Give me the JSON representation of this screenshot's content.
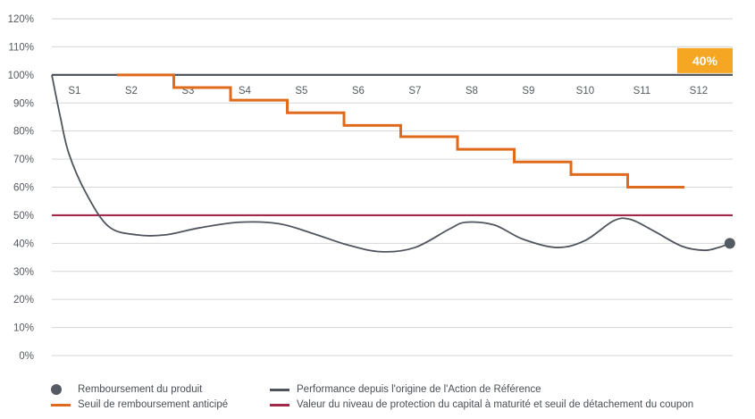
{
  "chart_data": {
    "type": "line",
    "title": "",
    "xlabel": "",
    "ylabel": "",
    "ylim": [
      0,
      120
    ],
    "y_ticks": [
      0,
      10,
      20,
      30,
      40,
      50,
      60,
      70,
      80,
      90,
      100,
      110,
      120
    ],
    "y_tick_labels": [
      "0%",
      "10%",
      "20%",
      "30%",
      "40%",
      "50%",
      "60%",
      "70%",
      "80%",
      "90%",
      "100%",
      "110%",
      "120%"
    ],
    "x_range": [
      0,
      12
    ],
    "x_labels": [
      "S1",
      "S2",
      "S3",
      "S4",
      "S5",
      "S6",
      "S7",
      "S8",
      "S9",
      "S10",
      "S11",
      "S12"
    ],
    "grid": true,
    "reference_100": 100,
    "series": [
      {
        "name": "Performance depuis l'origine de l'Action de Référence",
        "color": "#50545c",
        "x": [
          0,
          0.15,
          0.3,
          0.6,
          1.0,
          1.5,
          2.0,
          2.6,
          3.3,
          4.0,
          4.6,
          5.2,
          5.8,
          6.4,
          7.0,
          7.3,
          7.8,
          8.3,
          8.9,
          9.4,
          9.9,
          10.2,
          10.6,
          11.1,
          11.5,
          11.75,
          11.95
        ],
        "y": [
          100,
          85,
          72,
          58,
          46,
          43,
          43,
          45.5,
          47.5,
          47,
          43.5,
          39.5,
          37,
          38.5,
          45,
          47.5,
          46.5,
          41.5,
          38.5,
          41,
          48,
          48.5,
          44.5,
          39,
          37.5,
          38.5,
          40
        ]
      },
      {
        "name": "Seuil de remboursement anticipé",
        "color": "#e06a1b",
        "type": "step",
        "steps": [
          {
            "x_start": 1.15,
            "x_end": 2.15,
            "y": 100
          },
          {
            "x_start": 2.15,
            "x_end": 3.15,
            "y": 95.5
          },
          {
            "x_start": 3.15,
            "x_end": 4.15,
            "y": 91
          },
          {
            "x_start": 4.15,
            "x_end": 5.15,
            "y": 86.5
          },
          {
            "x_start": 5.15,
            "x_end": 6.15,
            "y": 82
          },
          {
            "x_start": 6.15,
            "x_end": 7.15,
            "y": 78
          },
          {
            "x_start": 7.15,
            "x_end": 8.15,
            "y": 73.5
          },
          {
            "x_start": 8.15,
            "x_end": 9.15,
            "y": 69
          },
          {
            "x_start": 9.15,
            "x_end": 10.15,
            "y": 64.5
          },
          {
            "x_start": 10.15,
            "x_end": 11.15,
            "y": 60
          }
        ]
      },
      {
        "name": "Valeur du niveau de protection du capital à maturité et seuil de détachement du coupon",
        "color": "#a2284a",
        "type": "hline",
        "y": 50
      }
    ],
    "points": [
      {
        "name": "Remboursement du produit",
        "x": 11.95,
        "y": 40,
        "color": "#555a62"
      }
    ],
    "annotations": [
      {
        "text": "40%",
        "color": "#f5a623",
        "near": "S12 at 100% level"
      }
    ]
  },
  "legend": {
    "items": [
      {
        "label": "Remboursement du produit"
      },
      {
        "label": "Performance depuis l'origine de l'Action de Référence"
      },
      {
        "label": "Seuil de remboursement anticipé"
      },
      {
        "label": "Valeur du niveau de protection du capital à maturité et seuil de détachement du coupon"
      }
    ]
  }
}
